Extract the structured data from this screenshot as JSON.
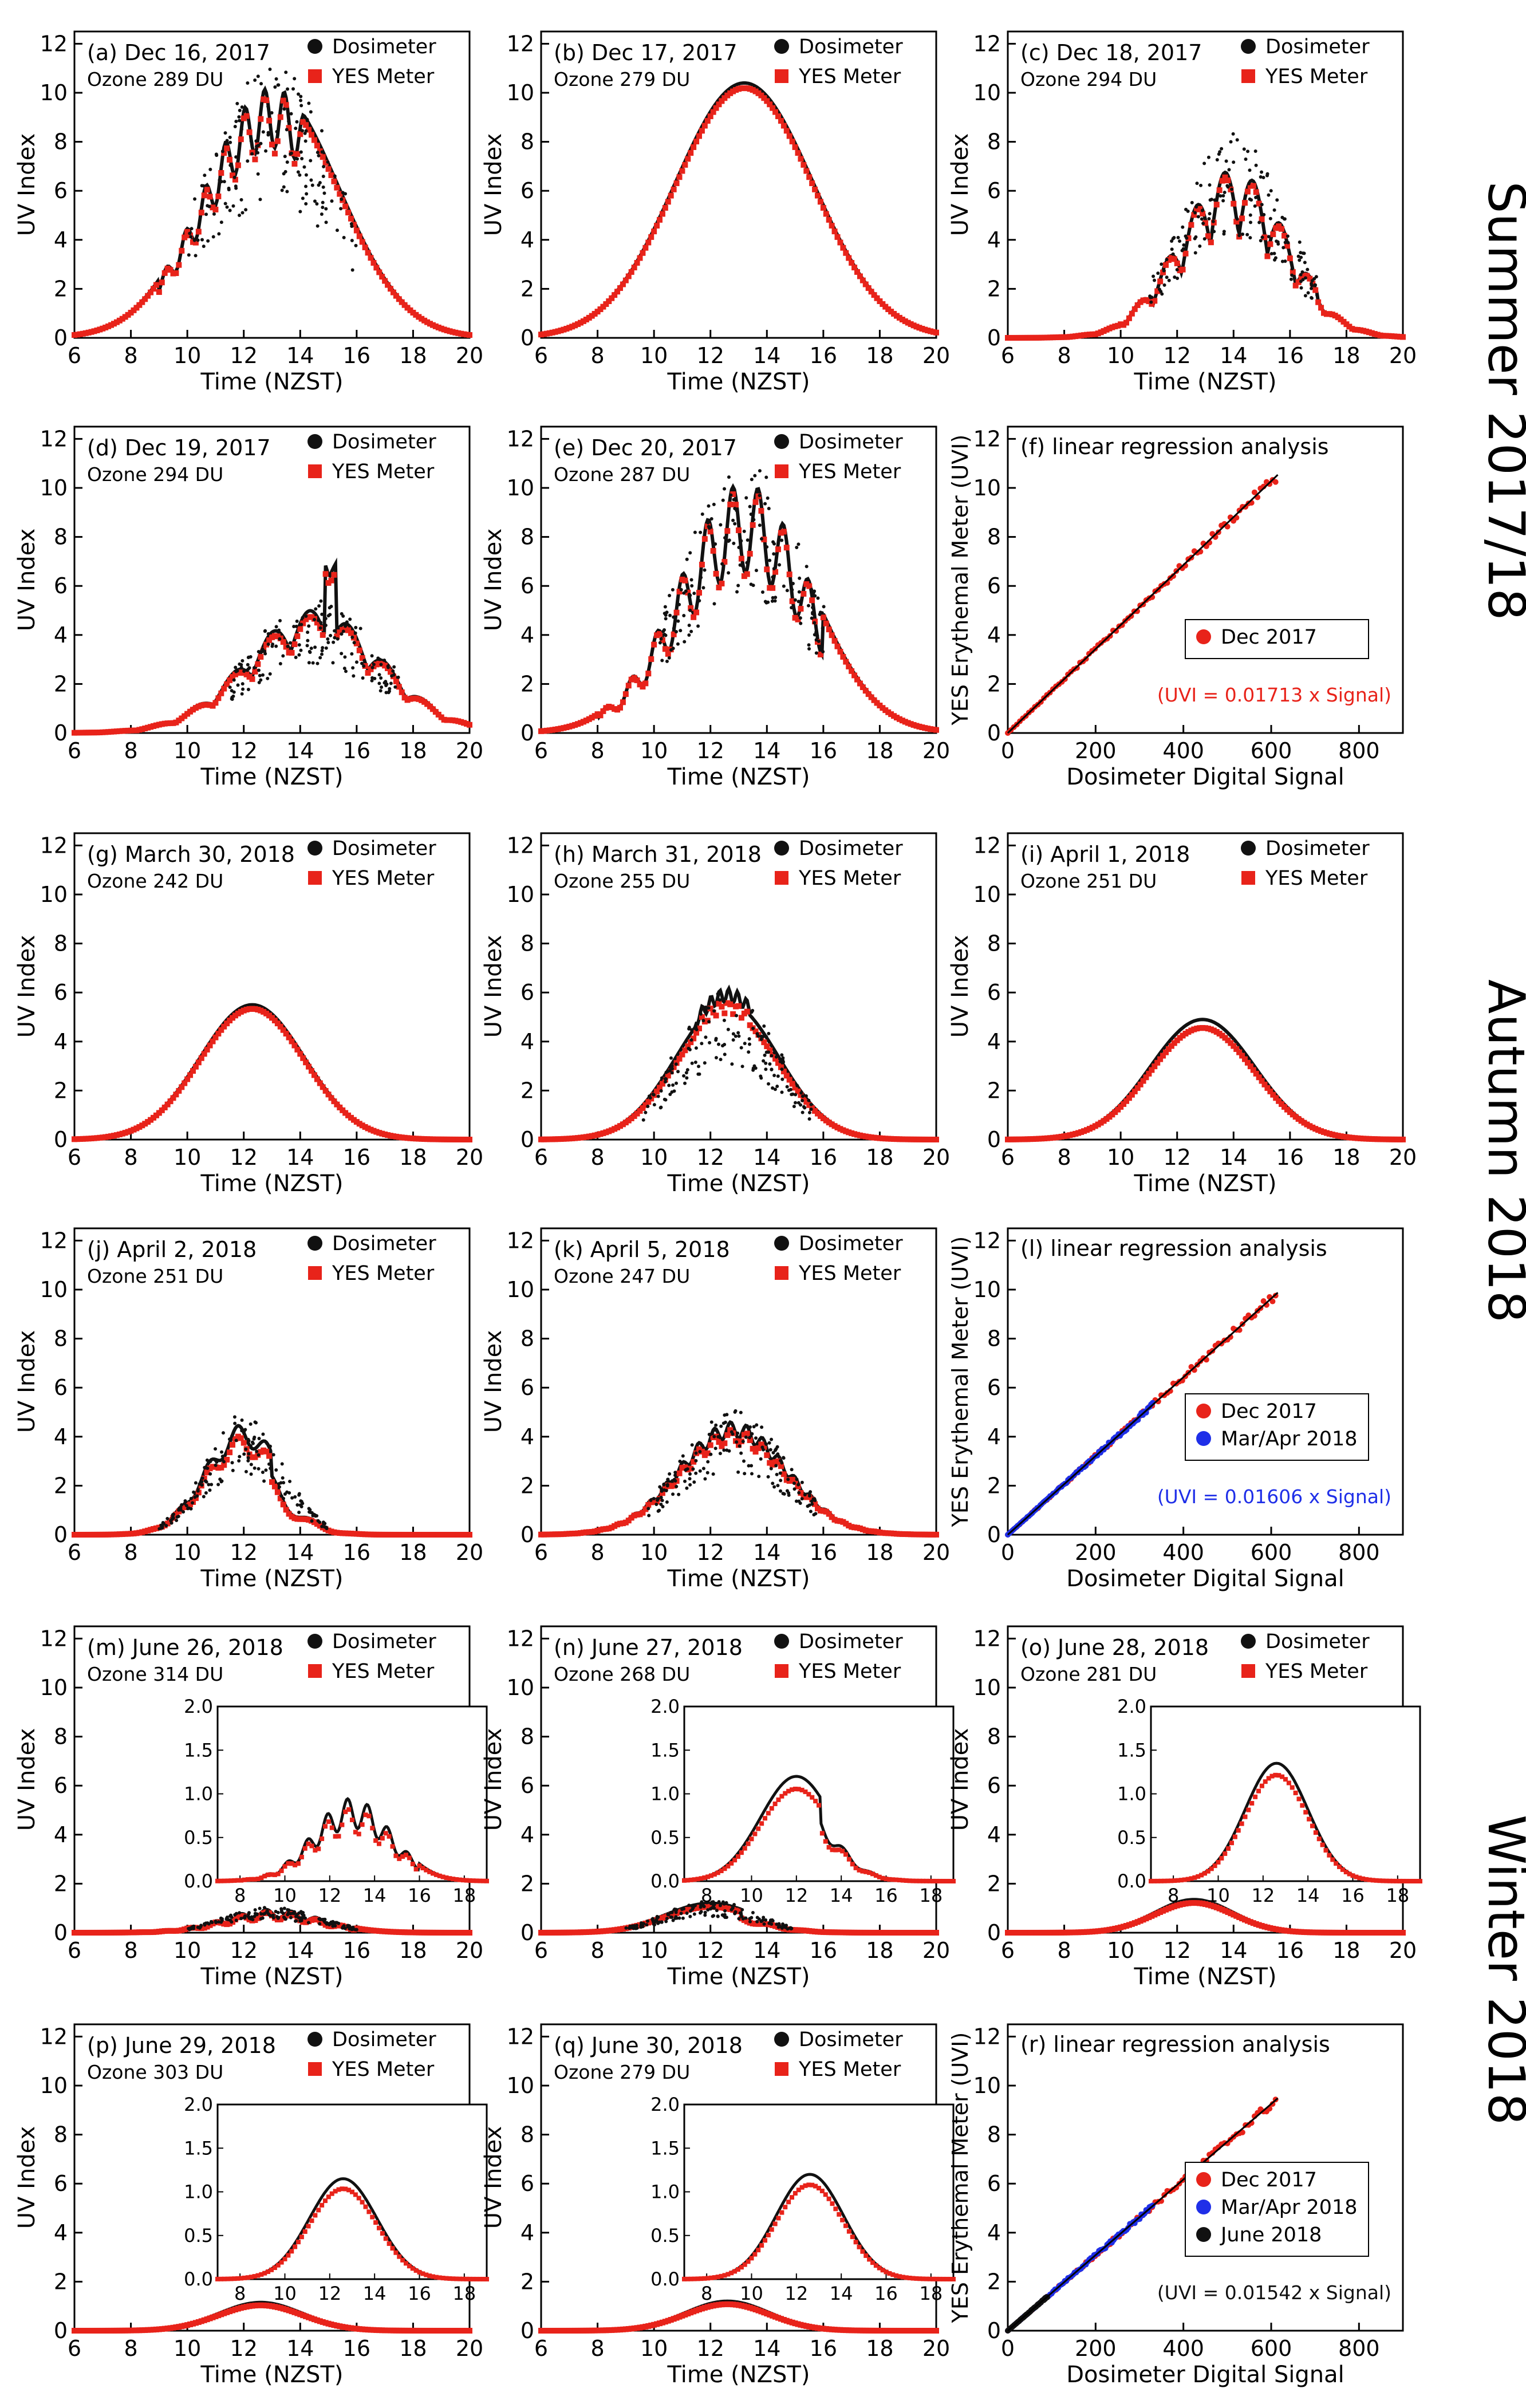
{
  "seasons": [
    {
      "label": "Summer 2017/18"
    },
    {
      "label": "Autumn 2018"
    },
    {
      "label": "Winter 2018"
    }
  ],
  "colors": {
    "dosimeter": "#111111",
    "yes": "#e8231a",
    "marApr": "#1f2fe8",
    "june": "#111111"
  },
  "chart_data": [
    {
      "id": "a",
      "type": "line",
      "panel_label": "(a) Dec 16, 2017",
      "ozone": "Ozone 289 DU",
      "xlabel": "Time (NZST)",
      "ylabel": "UV Index",
      "x_ticks": [
        "6",
        "8",
        "10",
        "12",
        "14",
        "16",
        "18",
        "20"
      ],
      "y_ticks": [
        "0",
        "2",
        "4",
        "6",
        "8",
        "10",
        "12"
      ],
      "xlim": [
        6,
        20
      ],
      "ylim": [
        0,
        12.5
      ],
      "legend": [
        "Dosimeter",
        "YES Meter"
      ],
      "peak": 10.2,
      "center": 13.0,
      "sigma": 2.35,
      "dos_ratio": 1.0,
      "yes_ratio": 0.97,
      "cloud": "variable-morning",
      "inset": null
    },
    {
      "id": "b",
      "type": "line",
      "panel_label": "(b) Dec 17, 2017",
      "ozone": "Ozone 279 DU",
      "xlabel": "Time (NZST)",
      "ylabel": "UV Index",
      "x_ticks": [
        "6",
        "8",
        "10",
        "12",
        "14",
        "16",
        "18",
        "20"
      ],
      "y_ticks": [
        "0",
        "2",
        "4",
        "6",
        "8",
        "10",
        "12"
      ],
      "xlim": [
        6,
        20
      ],
      "ylim": [
        0,
        12.5
      ],
      "legend": [
        "Dosimeter",
        "YES Meter"
      ],
      "peak": 10.4,
      "center": 13.2,
      "sigma": 2.45,
      "dos_ratio": 1.0,
      "yes_ratio": 0.98,
      "cloud": "clear",
      "inset": null
    },
    {
      "id": "c",
      "type": "line",
      "panel_label": "(c) Dec 18, 2017",
      "ozone": "Ozone 294 DU",
      "xlabel": "Time (NZST)",
      "ylabel": "UV Index",
      "x_ticks": [
        "6",
        "8",
        "10",
        "12",
        "14",
        "16",
        "18",
        "20"
      ],
      "y_ticks": [
        "0",
        "2",
        "4",
        "6",
        "8",
        "10",
        "12"
      ],
      "xlim": [
        6,
        20
      ],
      "ylim": [
        0,
        12.5
      ],
      "legend": [
        "Dosimeter",
        "YES Meter"
      ],
      "peak": 7.6,
      "center": 14.0,
      "sigma": 1.9,
      "dos_ratio": 1.0,
      "yes_ratio": 0.97,
      "cloud": "heavy",
      "inset": null
    },
    {
      "id": "d",
      "type": "line",
      "panel_label": "(d) Dec 19, 2017",
      "ozone": "Ozone 294 DU",
      "xlabel": "Time (NZST)",
      "ylabel": "UV Index",
      "x_ticks": [
        "6",
        "8",
        "10",
        "12",
        "14",
        "16",
        "18",
        "20"
      ],
      "y_ticks": [
        "0",
        "2",
        "4",
        "6",
        "8",
        "10",
        "12"
      ],
      "xlim": [
        6,
        20
      ],
      "ylim": [
        0,
        12.5
      ],
      "legend": [
        "Dosimeter",
        "YES Meter"
      ],
      "peak": 5.0,
      "center": 14.5,
      "sigma": 2.4,
      "dos_ratio": 1.0,
      "yes_ratio": 0.95,
      "cloud": "overcast",
      "inset": null
    },
    {
      "id": "e",
      "type": "line",
      "panel_label": "(e) Dec 20, 2017",
      "ozone": "Ozone 287 DU",
      "xlabel": "Time (NZST)",
      "ylabel": "UV Index",
      "x_ticks": [
        "6",
        "8",
        "10",
        "12",
        "14",
        "16",
        "18",
        "20"
      ],
      "y_ticks": [
        "0",
        "2",
        "4",
        "6",
        "8",
        "10",
        "12"
      ],
      "xlim": [
        6,
        20
      ],
      "ylim": [
        0,
        12.5
      ],
      "legend": [
        "Dosimeter",
        "YES Meter"
      ],
      "peak": 10.2,
      "center": 13.2,
      "sigma": 2.3,
      "dos_ratio": 1.0,
      "yes_ratio": 0.97,
      "cloud": "variable",
      "inset": null
    },
    {
      "id": "f",
      "type": "scatter",
      "panel_label": "(f) linear regression analysis",
      "xlabel": "Dosimeter Digital Signal",
      "ylabel": "YES Erythemal Meter (UVI)",
      "x_ticks": [
        "0",
        "200",
        "400",
        "600",
        "800"
      ],
      "y_ticks": [
        "0",
        "2",
        "4",
        "6",
        "8",
        "10",
        "12"
      ],
      "xlim": [
        0,
        900
      ],
      "ylim": [
        0,
        12.5
      ],
      "series": [
        {
          "name": "Dec 2017",
          "max_signal": 610,
          "color_key": "yes"
        }
      ],
      "equation": "(UVI = 0.01713 x Signal)",
      "equation_color": "#e8231a",
      "slope": 0.01713
    },
    {
      "id": "g",
      "type": "line",
      "panel_label": "(g) March 30, 2018",
      "ozone": "Ozone 242 DU",
      "xlabel": "Time (NZST)",
      "ylabel": "UV Index",
      "x_ticks": [
        "6",
        "8",
        "10",
        "12",
        "14",
        "16",
        "18",
        "20"
      ],
      "y_ticks": [
        "0",
        "2",
        "4",
        "6",
        "8",
        "10",
        "12"
      ],
      "xlim": [
        6,
        20
      ],
      "ylim": [
        0,
        12.5
      ],
      "legend": [
        "Dosimeter",
        "YES Meter"
      ],
      "peak": 5.5,
      "center": 12.3,
      "sigma": 1.85,
      "dos_ratio": 1.0,
      "yes_ratio": 0.97,
      "cloud": "clear",
      "inset": null
    },
    {
      "id": "h",
      "type": "line",
      "panel_label": "(h) March 31, 2018",
      "ozone": "Ozone 255 DU",
      "xlabel": "Time (NZST)",
      "ylabel": "UV Index",
      "x_ticks": [
        "6",
        "8",
        "10",
        "12",
        "14",
        "16",
        "18",
        "20"
      ],
      "y_ticks": [
        "0",
        "2",
        "4",
        "6",
        "8",
        "10",
        "12"
      ],
      "xlim": [
        6,
        20
      ],
      "ylim": [
        0,
        12.5
      ],
      "legend": [
        "Dosimeter",
        "YES Meter"
      ],
      "peak": 5.6,
      "center": 12.6,
      "sigma": 1.8,
      "dos_ratio": 1.0,
      "yes_ratio": 0.92,
      "cloud": "noon-bumps",
      "inset": null
    },
    {
      "id": "i",
      "type": "line",
      "panel_label": "(i) April 1, 2018",
      "ozone": "Ozone 251 DU",
      "xlabel": "Time (NZST)",
      "ylabel": "UV Index",
      "x_ticks": [
        "6",
        "8",
        "10",
        "12",
        "14",
        "16",
        "18",
        "20"
      ],
      "y_ticks": [
        "0",
        "2",
        "4",
        "6",
        "8",
        "10",
        "12"
      ],
      "xlim": [
        6,
        20
      ],
      "ylim": [
        0,
        12.5
      ],
      "legend": [
        "Dosimeter",
        "YES Meter"
      ],
      "peak": 4.9,
      "center": 12.9,
      "sigma": 1.85,
      "dos_ratio": 1.0,
      "yes_ratio": 0.93,
      "cloud": "clear",
      "inset": null
    },
    {
      "id": "j",
      "type": "line",
      "panel_label": "(j) April 2, 2018",
      "ozone": "Ozone 251 DU",
      "xlabel": "Time (NZST)",
      "ylabel": "UV Index",
      "x_ticks": [
        "6",
        "8",
        "10",
        "12",
        "14",
        "16",
        "18",
        "20"
      ],
      "y_ticks": [
        "0",
        "2",
        "4",
        "6",
        "8",
        "10",
        "12"
      ],
      "xlim": [
        6,
        20
      ],
      "ylim": [
        0,
        12.5
      ],
      "legend": [
        "Dosimeter",
        "YES Meter"
      ],
      "peak": 4.5,
      "center": 12.0,
      "sigma": 1.35,
      "dos_ratio": 1.0,
      "yes_ratio": 0.9,
      "cloud": "cloudy-afternoon",
      "inset": null
    },
    {
      "id": "k",
      "type": "line",
      "panel_label": "(k) April 5, 2018",
      "ozone": "Ozone 247 DU",
      "xlabel": "Time (NZST)",
      "ylabel": "UV Index",
      "x_ticks": [
        "6",
        "8",
        "10",
        "12",
        "14",
        "16",
        "18",
        "20"
      ],
      "y_ticks": [
        "0",
        "2",
        "4",
        "6",
        "8",
        "10",
        "12"
      ],
      "xlim": [
        6,
        20
      ],
      "ylim": [
        0,
        12.5
      ],
      "legend": [
        "Dosimeter",
        "YES Meter"
      ],
      "peak": 4.6,
      "center": 12.8,
      "sigma": 1.9,
      "dos_ratio": 1.0,
      "yes_ratio": 0.93,
      "cloud": "light",
      "inset": null
    },
    {
      "id": "l",
      "type": "scatter",
      "panel_label": "(l) linear regression analysis",
      "xlabel": "Dosimeter Digital Signal",
      "ylabel": "YES Erythemal Meter (UVI)",
      "x_ticks": [
        "0",
        "200",
        "400",
        "600",
        "800"
      ],
      "y_ticks": [
        "0",
        "2",
        "4",
        "6",
        "8",
        "10",
        "12"
      ],
      "xlim": [
        0,
        900
      ],
      "ylim": [
        0,
        12.5
      ],
      "series": [
        {
          "name": "Dec 2017",
          "max_signal": 610,
          "color_key": "yes"
        },
        {
          "name": "Mar/Apr 2018",
          "max_signal": 330,
          "color_key": "marApr"
        }
      ],
      "equation": "(UVI = 0.01606 x Signal)",
      "equation_color": "#1f2fe8",
      "slope": 0.01606
    },
    {
      "id": "m",
      "type": "line",
      "panel_label": "(m) June 26, 2018",
      "ozone": "Ozone 314 DU",
      "xlabel": "Time (NZST)",
      "ylabel": "UV Index",
      "x_ticks": [
        "6",
        "8",
        "10",
        "12",
        "14",
        "16",
        "18",
        "20"
      ],
      "y_ticks": [
        "0",
        "2",
        "4",
        "6",
        "8",
        "10",
        "12"
      ],
      "xlim": [
        6,
        20
      ],
      "ylim": [
        0,
        12.5
      ],
      "legend": [
        "Dosimeter",
        "YES Meter"
      ],
      "peak": 0.95,
      "center": 13.0,
      "sigma": 1.7,
      "dos_ratio": 1.0,
      "yes_ratio": 0.88,
      "cloud": "variable",
      "inset": {
        "x_ticks": [
          "8",
          "10",
          "12",
          "14",
          "16",
          "18"
        ],
        "y_ticks": [
          "0.0",
          "0.5",
          "1.0",
          "1.5",
          "2.0"
        ],
        "xlim": [
          7,
          19
        ],
        "ylim": [
          0,
          2.0
        ]
      }
    },
    {
      "id": "n",
      "type": "line",
      "panel_label": "(n) June 27, 2018",
      "ozone": "Ozone 268 DU",
      "xlabel": "Time (NZST)",
      "ylabel": "UV Index",
      "x_ticks": [
        "6",
        "8",
        "10",
        "12",
        "14",
        "16",
        "18",
        "20"
      ],
      "y_ticks": [
        "0",
        "2",
        "4",
        "6",
        "8",
        "10",
        "12"
      ],
      "xlim": [
        6,
        20
      ],
      "ylim": [
        0,
        12.5
      ],
      "legend": [
        "Dosimeter",
        "YES Meter"
      ],
      "peak": 1.2,
      "center": 12.0,
      "sigma": 1.6,
      "dos_ratio": 1.0,
      "yes_ratio": 0.88,
      "cloud": "afternoon-step",
      "inset": {
        "x_ticks": [
          "8",
          "10",
          "12",
          "14",
          "16",
          "18"
        ],
        "y_ticks": [
          "0.0",
          "0.5",
          "1.0",
          "1.5",
          "2.0"
        ],
        "xlim": [
          7,
          19
        ],
        "ylim": [
          0,
          2.0
        ]
      }
    },
    {
      "id": "o",
      "type": "line",
      "panel_label": "(o) June 28, 2018",
      "ozone": "Ozone 281 DU",
      "xlabel": "Time (NZST)",
      "ylabel": "UV Index",
      "x_ticks": [
        "6",
        "8",
        "10",
        "12",
        "14",
        "16",
        "18",
        "20"
      ],
      "y_ticks": [
        "0",
        "2",
        "4",
        "6",
        "8",
        "10",
        "12"
      ],
      "xlim": [
        6,
        20
      ],
      "ylim": [
        0,
        12.5
      ],
      "legend": [
        "Dosimeter",
        "YES Meter"
      ],
      "peak": 1.35,
      "center": 12.6,
      "sigma": 1.4,
      "dos_ratio": 1.0,
      "yes_ratio": 0.9,
      "cloud": "clear",
      "inset": {
        "x_ticks": [
          "8",
          "10",
          "12",
          "14",
          "16",
          "18"
        ],
        "y_ticks": [
          "0.0",
          "0.5",
          "1.0",
          "1.5",
          "2.0"
        ],
        "xlim": [
          7,
          19
        ],
        "ylim": [
          0,
          2.0
        ]
      }
    },
    {
      "id": "p",
      "type": "line",
      "panel_label": "(p) June 29, 2018",
      "ozone": "Ozone 303 DU",
      "xlabel": "Time (NZST)",
      "ylabel": "UV Index",
      "x_ticks": [
        "6",
        "8",
        "10",
        "12",
        "14",
        "16",
        "18",
        "20"
      ],
      "y_ticks": [
        "0",
        "2",
        "4",
        "6",
        "8",
        "10",
        "12"
      ],
      "xlim": [
        6,
        20
      ],
      "ylim": [
        0,
        12.5
      ],
      "legend": [
        "Dosimeter",
        "YES Meter"
      ],
      "peak": 1.15,
      "center": 12.6,
      "sigma": 1.5,
      "dos_ratio": 1.0,
      "yes_ratio": 0.9,
      "cloud": "clear",
      "inset": {
        "x_ticks": [
          "8",
          "10",
          "12",
          "14",
          "16",
          "18"
        ],
        "y_ticks": [
          "0.0",
          "0.5",
          "1.0",
          "1.5",
          "2.0"
        ],
        "xlim": [
          7,
          19
        ],
        "ylim": [
          0,
          2.0
        ]
      }
    },
    {
      "id": "q",
      "type": "line",
      "panel_label": "(q) June 30, 2018",
      "ozone": "Ozone 279 DU",
      "xlabel": "Time (NZST)",
      "ylabel": "UV Index",
      "x_ticks": [
        "6",
        "8",
        "10",
        "12",
        "14",
        "16",
        "18",
        "20"
      ],
      "y_ticks": [
        "0",
        "2",
        "4",
        "6",
        "8",
        "10",
        "12"
      ],
      "xlim": [
        6,
        20
      ],
      "ylim": [
        0,
        12.5
      ],
      "legend": [
        "Dosimeter",
        "YES Meter"
      ],
      "peak": 1.2,
      "center": 12.6,
      "sigma": 1.5,
      "dos_ratio": 1.0,
      "yes_ratio": 0.9,
      "cloud": "clear",
      "inset": {
        "x_ticks": [
          "8",
          "10",
          "12",
          "14",
          "16",
          "18"
        ],
        "y_ticks": [
          "0.0",
          "0.5",
          "1.0",
          "1.5",
          "2.0"
        ],
        "xlim": [
          7,
          19
        ],
        "ylim": [
          0,
          2.0
        ]
      }
    },
    {
      "id": "r",
      "type": "scatter",
      "panel_label": "(r) linear regression analysis",
      "xlabel": "Dosimeter Digital Signal",
      "ylabel": "YES Erythemal Meter (UVI)",
      "x_ticks": [
        "0",
        "200",
        "400",
        "600",
        "800"
      ],
      "y_ticks": [
        "0",
        "2",
        "4",
        "6",
        "8",
        "10",
        "12"
      ],
      "xlim": [
        0,
        900
      ],
      "ylim": [
        0,
        12.5
      ],
      "series": [
        {
          "name": "Dec 2017",
          "max_signal": 610,
          "color_key": "yes"
        },
        {
          "name": "Mar/Apr 2018",
          "max_signal": 330,
          "color_key": "marApr"
        },
        {
          "name": "June 2018",
          "max_signal": 90,
          "color_key": "june"
        }
      ],
      "equation": "(UVI = 0.01542 x Signal)",
      "equation_color": "#111111",
      "slope": 0.01542
    }
  ]
}
